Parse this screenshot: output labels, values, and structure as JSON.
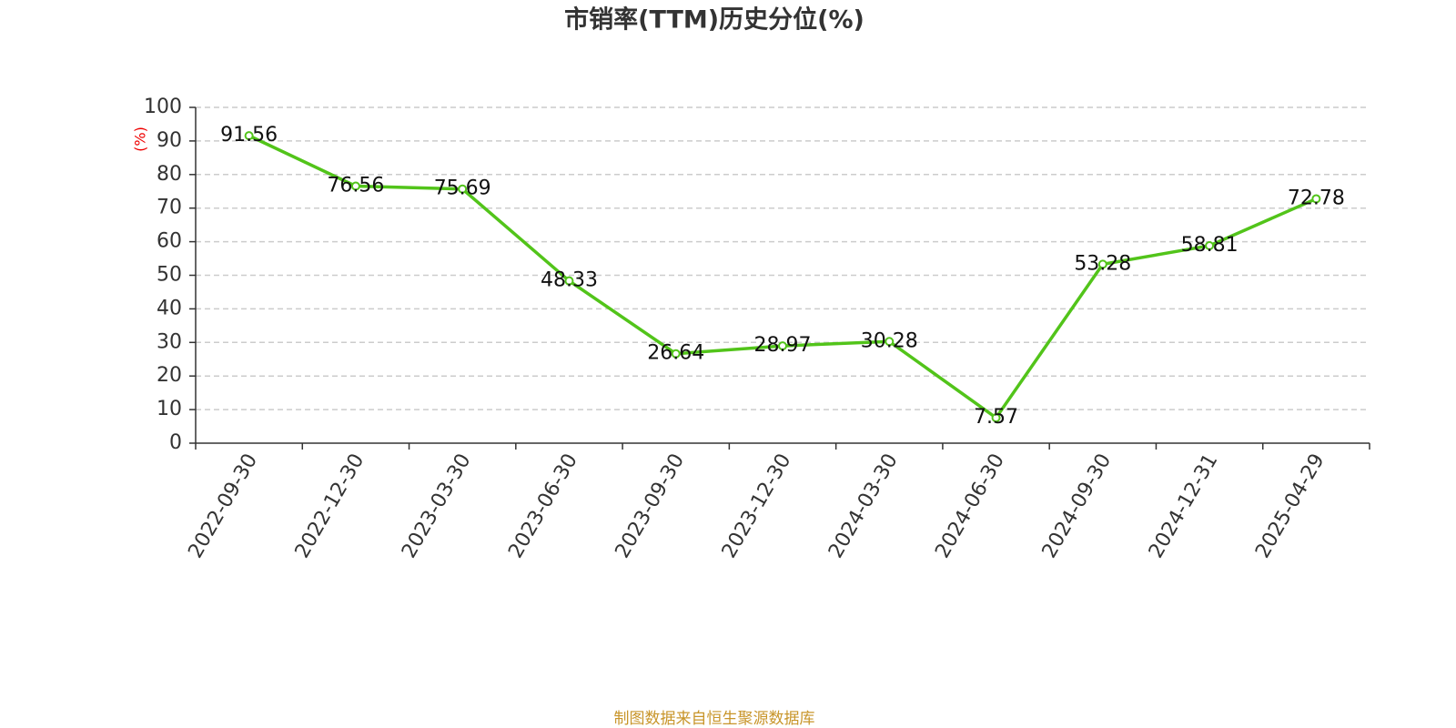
{
  "chart_data": {
    "type": "line",
    "title": "市销率(TTM)历史分位(%)",
    "y_label": "(%)",
    "categories": [
      "2022-09-30",
      "2022-12-30",
      "2023-03-30",
      "2023-06-30",
      "2023-09-30",
      "2023-12-30",
      "2024-03-30",
      "2024-06-30",
      "2024-09-30",
      "2024-12-31",
      "2025-04-29"
    ],
    "values": [
      91.56,
      76.56,
      75.69,
      48.33,
      26.64,
      28.97,
      30.28,
      7.57,
      53.28,
      58.81,
      72.78
    ],
    "color": "#52c41a",
    "ylim": [
      0,
      100
    ],
    "yticks": [
      0,
      10,
      20,
      30,
      40,
      50,
      60,
      70,
      80,
      90,
      100
    ],
    "grid": true,
    "source": "制图数据来自恒生聚源数据库"
  }
}
